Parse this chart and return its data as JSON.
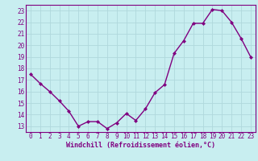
{
  "x": [
    0,
    1,
    2,
    3,
    4,
    5,
    6,
    7,
    8,
    9,
    10,
    11,
    12,
    13,
    14,
    15,
    16,
    17,
    18,
    19,
    20,
    21,
    22,
    23
  ],
  "y": [
    17.5,
    16.7,
    16.0,
    15.2,
    14.3,
    13.0,
    13.4,
    13.4,
    12.8,
    13.3,
    14.1,
    13.5,
    14.5,
    15.9,
    16.6,
    19.3,
    20.4,
    21.9,
    21.9,
    23.1,
    23.0,
    22.0,
    20.6,
    19.0
  ],
  "line_color": "#800080",
  "marker": "D",
  "marker_size": 2,
  "bg_color": "#c8eef0",
  "grid_color": "#b0d8dc",
  "xlabel": "Windchill (Refroidissement éolien,°C)",
  "ylabel_ticks": [
    13,
    14,
    15,
    16,
    17,
    18,
    19,
    20,
    21,
    22,
    23
  ],
  "xticks": [
    0,
    1,
    2,
    3,
    4,
    5,
    6,
    7,
    8,
    9,
    10,
    11,
    12,
    13,
    14,
    15,
    16,
    17,
    18,
    19,
    20,
    21,
    22,
    23
  ],
  "ylim": [
    12.5,
    23.5
  ],
  "xlim": [
    -0.5,
    23.5
  ],
  "axis_color": "#800080",
  "tick_fontsize": 5.5,
  "xlabel_fontsize": 6.0,
  "linewidth": 1.0
}
